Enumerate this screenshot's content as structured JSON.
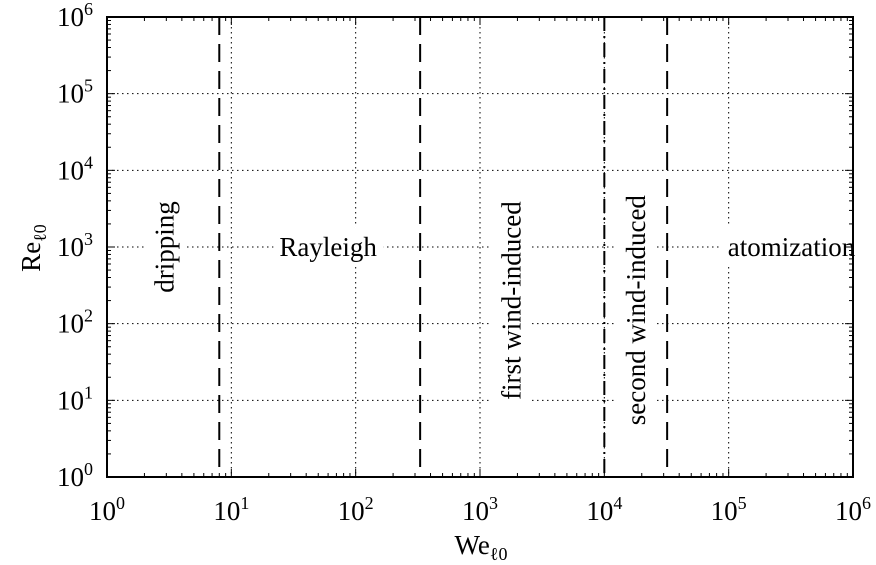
{
  "chart_data": {
    "type": "scatter",
    "x_scale": "log",
    "y_scale": "log",
    "xlim": [
      1,
      1000000
    ],
    "ylim": [
      1,
      1000000
    ],
    "grid": true,
    "xlabel": {
      "base": "We",
      "sub": "ℓ0"
    },
    "ylabel": {
      "base": "Re",
      "sub": "ℓ0"
    },
    "x_ticks": [
      {
        "value": 1,
        "base": "10",
        "exp": "0"
      },
      {
        "value": 10,
        "base": "10",
        "exp": "1"
      },
      {
        "value": 100,
        "base": "10",
        "exp": "2"
      },
      {
        "value": 1000,
        "base": "10",
        "exp": "3"
      },
      {
        "value": 10000,
        "base": "10",
        "exp": "4"
      },
      {
        "value": 100000,
        "base": "10",
        "exp": "5"
      },
      {
        "value": 1000000,
        "base": "10",
        "exp": "6"
      }
    ],
    "y_ticks": [
      {
        "value": 1,
        "base": "10",
        "exp": "0"
      },
      {
        "value": 10,
        "base": "10",
        "exp": "1"
      },
      {
        "value": 100,
        "base": "10",
        "exp": "2"
      },
      {
        "value": 1000,
        "base": "10",
        "exp": "3"
      },
      {
        "value": 10000,
        "base": "10",
        "exp": "4"
      },
      {
        "value": 100000,
        "base": "10",
        "exp": "5"
      },
      {
        "value": 1000000,
        "base": "10",
        "exp": "6"
      }
    ],
    "boundaries": [
      {
        "x": 8,
        "style": "dashed"
      },
      {
        "x": 330,
        "style": "dashed"
      },
      {
        "x": 10000,
        "style": "dashdot"
      },
      {
        "x": 32000,
        "style": "dashed"
      }
    ],
    "regions": [
      {
        "label": "dripping",
        "x": 2.9,
        "y": 1000,
        "rotation": -90
      },
      {
        "label": "Rayleigh",
        "x": 60,
        "y": 1000,
        "rotation": 0
      },
      {
        "label": "first wind-induced",
        "x": 1800,
        "y": 200,
        "rotation": -90
      },
      {
        "label": "second wind-induced",
        "x": 18000,
        "y": 150,
        "rotation": -90
      },
      {
        "label": "atomization",
        "x": 320000,
        "y": 1000,
        "rotation": 0
      }
    ]
  }
}
